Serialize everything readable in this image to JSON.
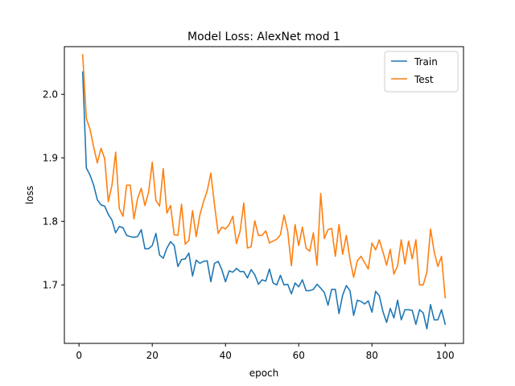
{
  "chart_data": {
    "type": "line",
    "title": "Model Loss: AlexNet mod 1",
    "xlabel": "epoch",
    "ylabel": "loss",
    "xlim": [
      -4,
      105
    ],
    "ylim": [
      1.608,
      2.075
    ],
    "xticks": [
      0,
      20,
      40,
      60,
      80,
      100
    ],
    "yticks": [
      1.7,
      1.8,
      1.9,
      2.0
    ],
    "xtick_labels": [
      "0",
      "20",
      "40",
      "60",
      "80",
      "100"
    ],
    "ytick_labels": [
      "1.7",
      "1.8",
      "1.9",
      "2.0"
    ],
    "grid": false,
    "legend_position": "top-right",
    "x": [
      1,
      2,
      3,
      4,
      5,
      6,
      7,
      8,
      9,
      10,
      11,
      12,
      13,
      14,
      15,
      16,
      17,
      18,
      19,
      20,
      21,
      22,
      23,
      24,
      25,
      26,
      27,
      28,
      29,
      30,
      31,
      32,
      33,
      34,
      35,
      36,
      37,
      38,
      39,
      40,
      41,
      42,
      43,
      44,
      45,
      46,
      47,
      48,
      49,
      50,
      51,
      52,
      53,
      54,
      55,
      56,
      57,
      58,
      59,
      60,
      61,
      62,
      63,
      64,
      65,
      66,
      67,
      68,
      69,
      70,
      71,
      72,
      73,
      74,
      75,
      76,
      77,
      78,
      79,
      80,
      81,
      82,
      83,
      84,
      85,
      86,
      87,
      88,
      89,
      90,
      91,
      92,
      93,
      94,
      95,
      96,
      97,
      98,
      99,
      100
    ],
    "series": [
      {
        "name": "Train",
        "color": "#1f77b4",
        "values": [
          2.035,
          1.884,
          1.873,
          1.857,
          1.834,
          1.826,
          1.824,
          1.811,
          1.802,
          1.782,
          1.792,
          1.79,
          1.778,
          1.776,
          1.775,
          1.776,
          1.787,
          1.757,
          1.757,
          1.762,
          1.781,
          1.747,
          1.742,
          1.758,
          1.768,
          1.762,
          1.729,
          1.74,
          1.741,
          1.75,
          1.714,
          1.739,
          1.734,
          1.737,
          1.738,
          1.705,
          1.734,
          1.737,
          1.724,
          1.705,
          1.722,
          1.72,
          1.726,
          1.721,
          1.721,
          1.711,
          1.724,
          1.716,
          1.701,
          1.708,
          1.706,
          1.725,
          1.703,
          1.7,
          1.715,
          1.7,
          1.701,
          1.686,
          1.703,
          1.697,
          1.708,
          1.691,
          1.691,
          1.693,
          1.701,
          1.695,
          1.688,
          1.668,
          1.693,
          1.693,
          1.655,
          1.684,
          1.699,
          1.691,
          1.652,
          1.676,
          1.674,
          1.67,
          1.675,
          1.657,
          1.69,
          1.683,
          1.658,
          1.641,
          1.663,
          1.648,
          1.676,
          1.645,
          1.661,
          1.661,
          1.66,
          1.638,
          1.661,
          1.656,
          1.631,
          1.669,
          1.645,
          1.645,
          1.661,
          1.638
        ]
      },
      {
        "name": "Test",
        "color": "#ff7f0e",
        "values": [
          2.062,
          1.962,
          1.945,
          1.917,
          1.892,
          1.915,
          1.899,
          1.831,
          1.857,
          1.909,
          1.82,
          1.808,
          1.857,
          1.857,
          1.804,
          1.836,
          1.852,
          1.825,
          1.846,
          1.893,
          1.833,
          1.824,
          1.883,
          1.813,
          1.825,
          1.779,
          1.778,
          1.827,
          1.764,
          1.77,
          1.817,
          1.776,
          1.81,
          1.831,
          1.848,
          1.876,
          1.826,
          1.781,
          1.791,
          1.788,
          1.795,
          1.808,
          1.765,
          1.785,
          1.829,
          1.758,
          1.76,
          1.801,
          1.778,
          1.778,
          1.785,
          1.766,
          1.769,
          1.772,
          1.779,
          1.81,
          1.784,
          1.73,
          1.795,
          1.762,
          1.791,
          1.758,
          1.753,
          1.782,
          1.731,
          1.844,
          1.773,
          1.787,
          1.789,
          1.745,
          1.795,
          1.748,
          1.778,
          1.74,
          1.712,
          1.738,
          1.745,
          1.735,
          1.725,
          1.766,
          1.755,
          1.771,
          1.752,
          1.731,
          1.756,
          1.717,
          1.73,
          1.771,
          1.733,
          1.769,
          1.741,
          1.771,
          1.7,
          1.7,
          1.72,
          1.788,
          1.752,
          1.729,
          1.745,
          1.68
        ]
      }
    ]
  }
}
